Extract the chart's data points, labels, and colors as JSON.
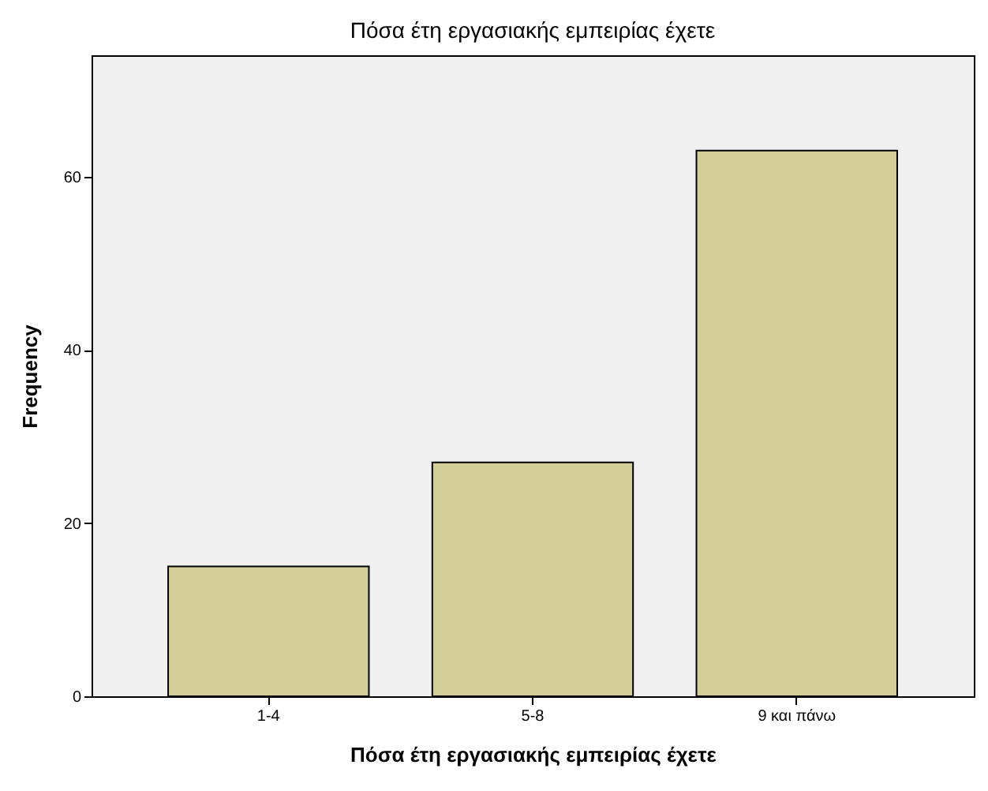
{
  "chart_data": {
    "type": "bar",
    "title": "Πόσα έτη εργασιακής εμπειρίας έχετε",
    "xlabel": "Πόσα έτη εργασιακής εμπειρίας έχετε",
    "ylabel": "Frequency",
    "categories": [
      "1-4",
      "5-8",
      "9 και πάνω"
    ],
    "values": [
      15,
      27,
      63
    ],
    "color": "#d3ce97",
    "ylim": [
      0,
      74
    ],
    "yticks": [
      0,
      20,
      40,
      60
    ],
    "grid": false
  }
}
